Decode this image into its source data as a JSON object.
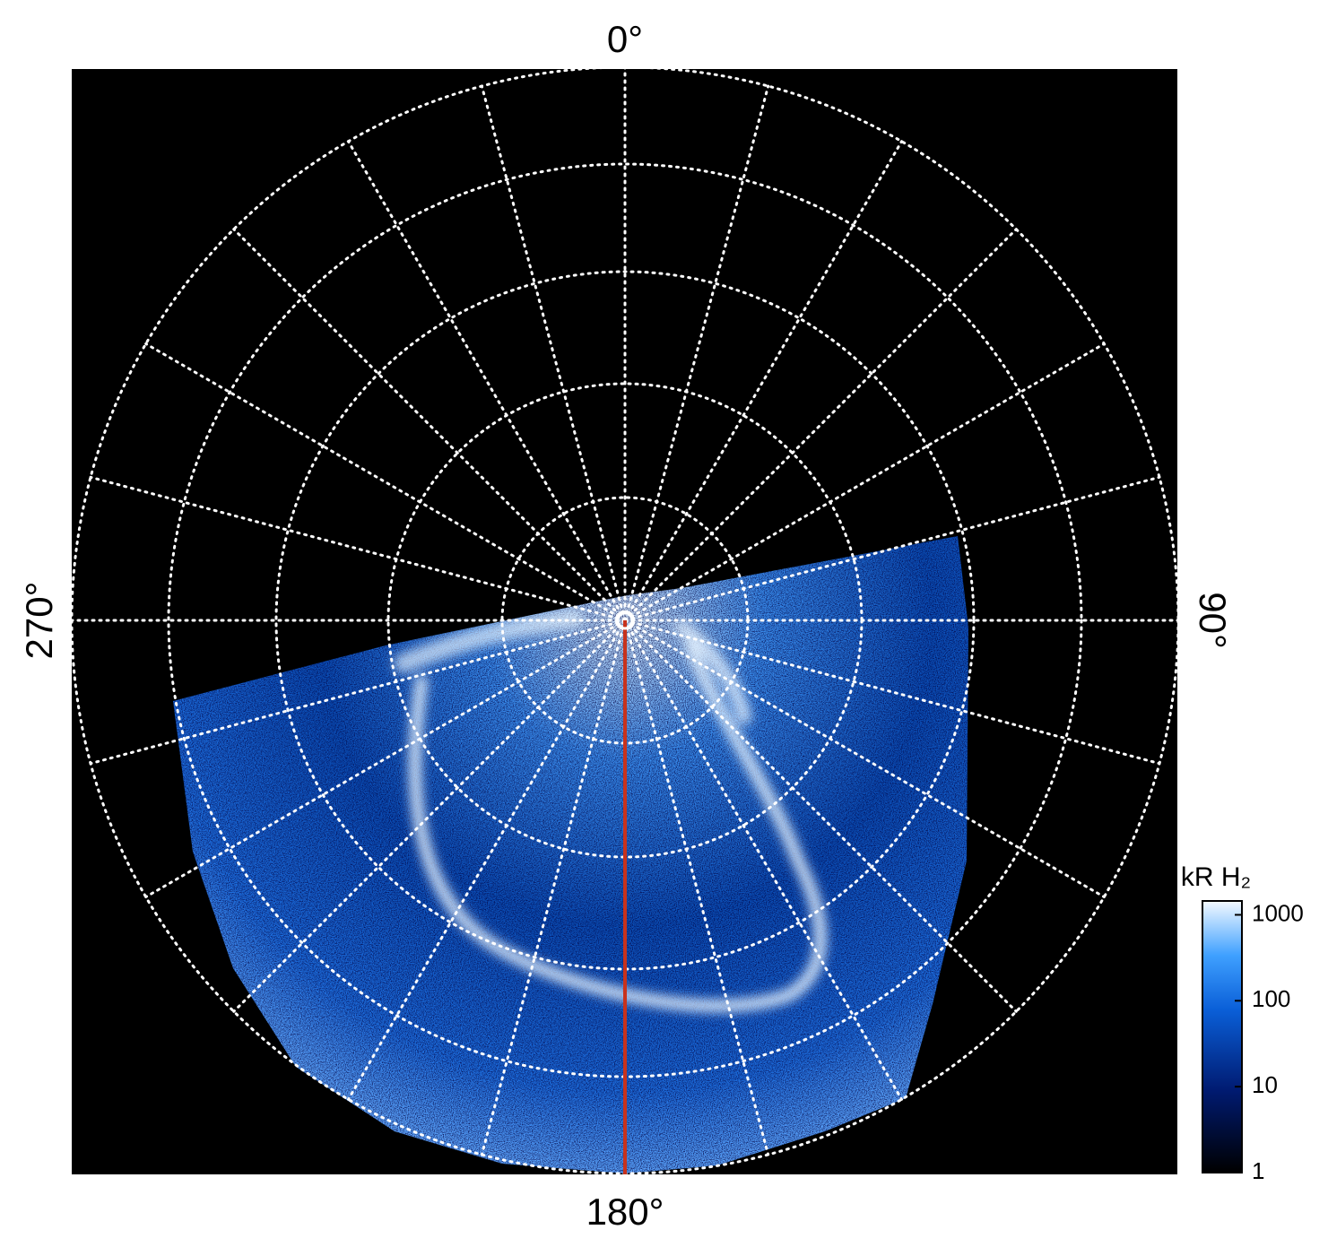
{
  "labels": {
    "top": "0°",
    "bottom": "180°",
    "left": "270°",
    "right": "90°"
  },
  "colorbar": {
    "title": "kR H₂",
    "scale": "log",
    "lim": [
      1,
      1450
    ],
    "ticks": [
      1,
      10,
      100,
      1000
    ]
  }
}
